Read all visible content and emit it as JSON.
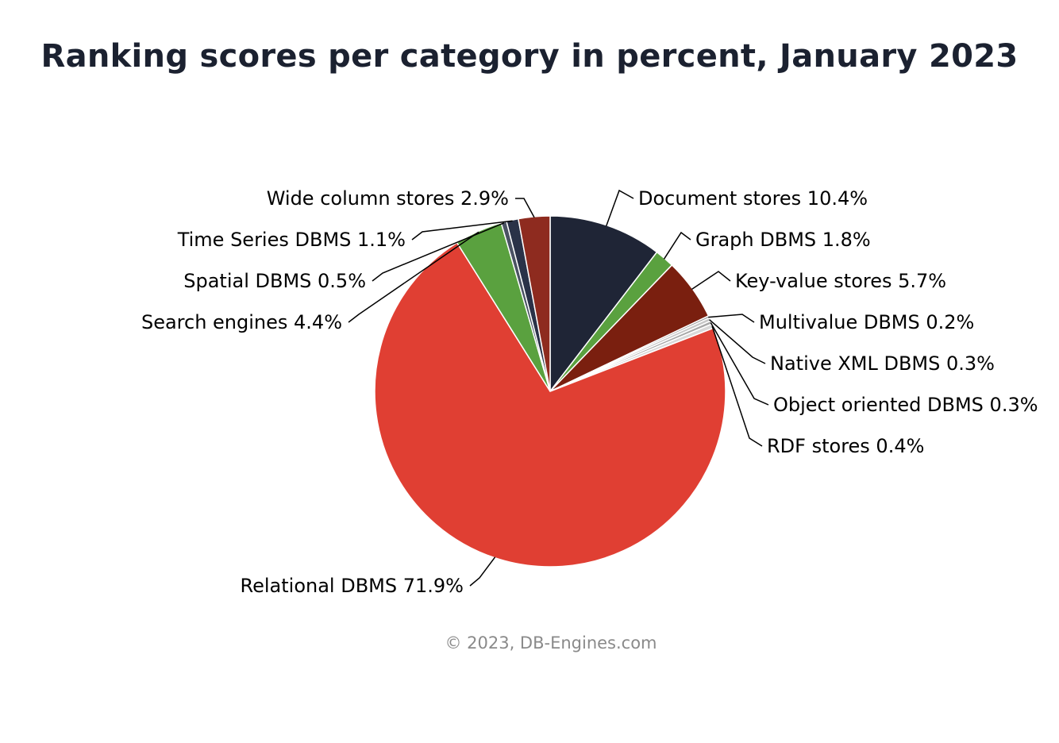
{
  "chart_data": {
    "type": "pie",
    "title": "Ranking scores per category in percent, January 2023",
    "slices": [
      {
        "name": "Document stores",
        "value": 10.4,
        "label": "Document stores 10.4%",
        "color": "#1f2536"
      },
      {
        "name": "Graph DBMS",
        "value": 1.8,
        "label": "Graph DBMS 1.8%",
        "color": "#5aa13f"
      },
      {
        "name": "Key-value stores",
        "value": 5.7,
        "label": "Key-value stores 5.7%",
        "color": "#7a1f0f"
      },
      {
        "name": "Multivalue DBMS",
        "value": 0.2,
        "label": "Multivalue DBMS 0.2%",
        "color": "#9a9a9a"
      },
      {
        "name": "Native XML DBMS",
        "value": 0.3,
        "label": "Native XML DBMS 0.3%",
        "color": "#c8c8c8"
      },
      {
        "name": "Object oriented DBMS",
        "value": 0.3,
        "label": "Object oriented DBMS 0.3%",
        "color": "#a8a8a8"
      },
      {
        "name": "RDF stores",
        "value": 0.4,
        "label": "RDF stores 0.4%",
        "color": "#d9d9d9"
      },
      {
        "name": "Relational DBMS",
        "value": 71.9,
        "label": "Relational DBMS 71.9%",
        "color": "#e03f33"
      },
      {
        "name": "Search engines",
        "value": 4.4,
        "label": "Search engines 4.4%",
        "color": "#5aa13f"
      },
      {
        "name": "Spatial DBMS",
        "value": 0.5,
        "label": "Spatial DBMS 0.5%",
        "color": "#4a5263"
      },
      {
        "name": "Time Series DBMS",
        "value": 1.1,
        "label": "Time Series DBMS 1.1%",
        "color": "#2a3248"
      },
      {
        "name": "Wide column stores",
        "value": 2.9,
        "label": "Wide column stores 2.9%",
        "color": "#8e2b1f"
      }
    ]
  },
  "credit": "© 2023, DB-Engines.com"
}
